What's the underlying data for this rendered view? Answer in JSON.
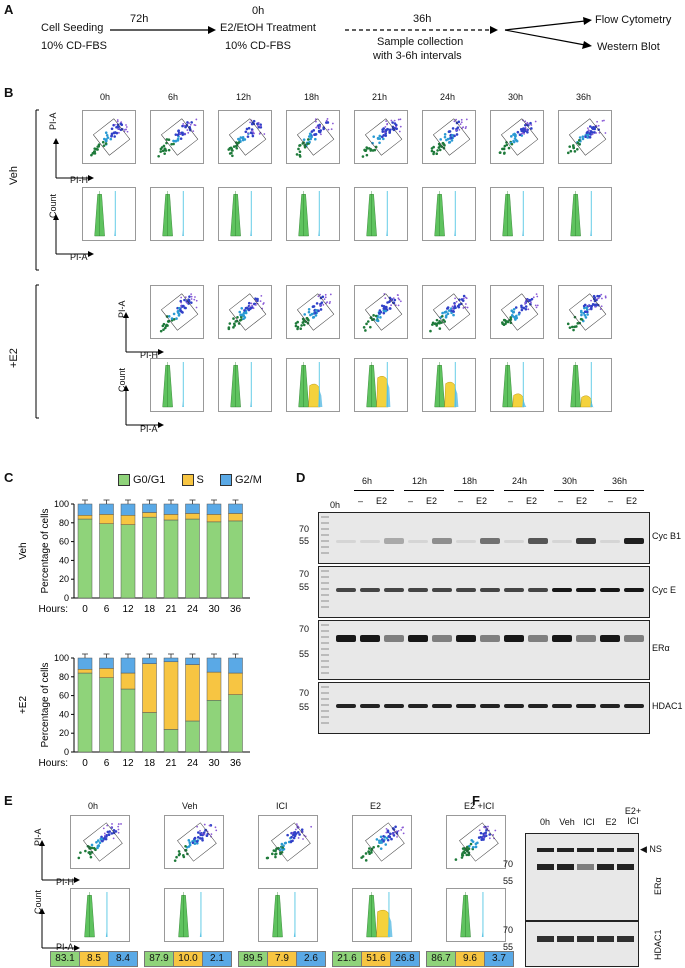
{
  "panels": {
    "A": "A",
    "B": "B",
    "C": "C",
    "D": "D",
    "E": "E",
    "F": "F"
  },
  "workflow": {
    "step1_title": "Cell Seeding",
    "step1_sub": "10% CD-FBS",
    "arrow1_label": "72h",
    "step2_time": "0h",
    "step2_title": "E2/EtOH Treatment",
    "step2_sub": "10% CD-FBS",
    "arrow2_label": "36h",
    "step3_line1": "Sample collection",
    "step3_line2": "with 3-6h intervals",
    "out1": "Flow Cytometry",
    "out2": "Western Blot"
  },
  "flow_b": {
    "timepoints": [
      "0h",
      "6h",
      "12h",
      "18h",
      "21h",
      "24h",
      "30h",
      "36h"
    ],
    "row_labels": [
      "Veh",
      "+E2"
    ],
    "axis_pi_a": "PI-A",
    "axis_pi_h": "PI-H",
    "axis_count": "Count"
  },
  "chart_data": [
    {
      "type": "bar",
      "title": "Veh",
      "ylabel": "Percentage of cells",
      "xlabel": "Hours:",
      "categories": [
        "0",
        "6",
        "12",
        "18",
        "21",
        "24",
        "30",
        "36"
      ],
      "series": [
        {
          "name": "G0/G1",
          "values": [
            84,
            79,
            78,
            86,
            83,
            84,
            81,
            82
          ]
        },
        {
          "name": "S",
          "values": [
            4,
            10,
            10,
            5,
            6,
            6,
            8,
            8
          ]
        },
        {
          "name": "G2/M",
          "values": [
            12,
            11,
            12,
            9,
            11,
            10,
            11,
            10
          ]
        }
      ],
      "ylim": [
        0,
        100
      ],
      "yticks": [
        0,
        20,
        40,
        60,
        80,
        100
      ]
    },
    {
      "type": "bar",
      "title": "+E2",
      "ylabel": "Percentage of cells",
      "xlabel": "Hours:",
      "categories": [
        "0",
        "6",
        "12",
        "18",
        "21",
        "24",
        "30",
        "36"
      ],
      "series": [
        {
          "name": "G0/G1",
          "values": [
            84,
            79,
            67,
            42,
            24,
            33,
            55,
            61
          ]
        },
        {
          "name": "S",
          "values": [
            4,
            10,
            17,
            52,
            72,
            60,
            30,
            23
          ]
        },
        {
          "name": "G2/M",
          "values": [
            12,
            11,
            16,
            6,
            4,
            7,
            15,
            16
          ]
        }
      ],
      "ylim": [
        0,
        100
      ],
      "yticks": [
        0,
        20,
        40,
        60,
        80,
        100
      ]
    }
  ],
  "legend": {
    "g0g1": "G0/G1",
    "s": "S",
    "g2m": "G2/M",
    "colors": {
      "g0g1": "#8fd37a",
      "s": "#f7c542",
      "g2m": "#5aa9e6"
    }
  },
  "blot_d": {
    "times": [
      "6h",
      "12h",
      "18h",
      "24h",
      "30h",
      "36h"
    ],
    "zero": "0h",
    "minus": "–",
    "e2": "E2",
    "markers": {
      "m70": "70",
      "m55": "55"
    },
    "proteins": [
      "Cyc B1",
      "Cyc E",
      "ERα",
      "HDAC1"
    ]
  },
  "flow_e": {
    "conditions": [
      "0h",
      "Veh",
      "ICI",
      "E2",
      "E2 +ICI"
    ],
    "axis_pi_a": "PI-A",
    "axis_pi_h": "PI-H",
    "axis_count": "Count",
    "summary": [
      [
        "83.1",
        "8.5",
        "8.4"
      ],
      [
        "87.9",
        "10.0",
        "2.1"
      ],
      [
        "89.5",
        "7.9",
        "2.6"
      ],
      [
        "21.6",
        "51.6",
        "26.8"
      ],
      [
        "86.7",
        "9.6",
        "3.7"
      ]
    ]
  },
  "blot_f": {
    "lanes": [
      "0h",
      "Veh",
      "ICI",
      "E2",
      "E2+ ICI"
    ],
    "ns": "NS",
    "markers": {
      "m70": "70",
      "m55": "55"
    },
    "proteins": [
      "ERα",
      "HDAC1"
    ]
  }
}
